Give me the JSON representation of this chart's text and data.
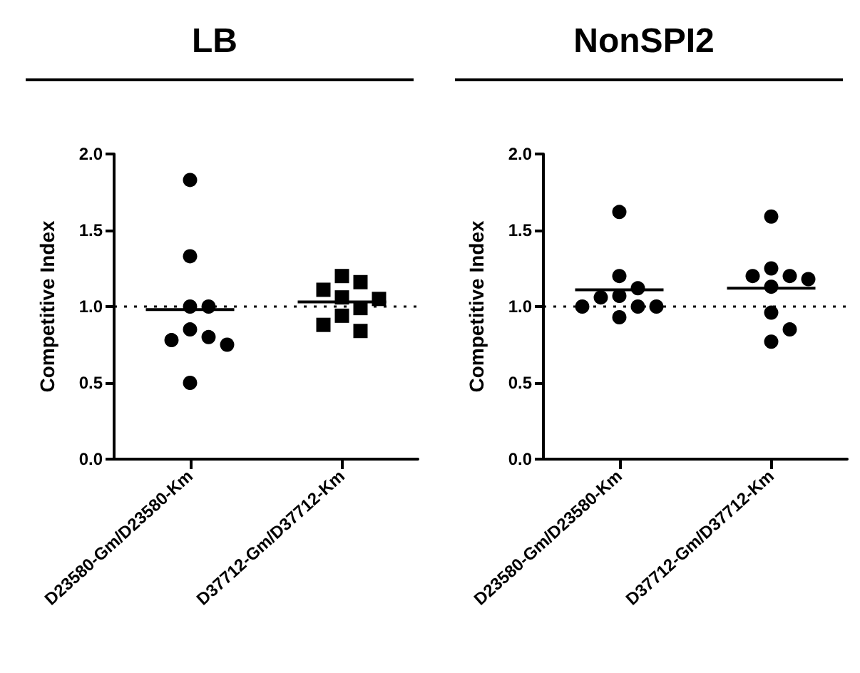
{
  "chart_data": [
    {
      "type": "scatter",
      "title": "LB",
      "ylabel": "Competitive Index",
      "categories": [
        "D23580-Gm/D23580-Km",
        "D37712-Gm/D37712-Km"
      ],
      "ylim": [
        0,
        2
      ],
      "yticks": [
        {
          "value": 0,
          "label": "0.0"
        },
        {
          "value": 0.5,
          "label": "0.5"
        },
        {
          "value": 1,
          "label": "1.0"
        },
        {
          "value": 1.5,
          "label": "1.5"
        },
        {
          "value": 2,
          "label": "2.0"
        }
      ],
      "grid": false,
      "ref_lines": [
        {
          "axis": "y",
          "value": 1,
          "line_style": "dotted",
          "color": "#000000"
        }
      ],
      "series": [
        {
          "marker": "circle",
          "color": "#000000",
          "x": [
            "D23580-Gm/D23580-Km",
            "D23580-Gm/D23580-Km",
            "D23580-Gm/D23580-Km",
            "D23580-Gm/D23580-Km",
            "D23580-Gm/D23580-Km",
            "D23580-Gm/D23580-Km",
            "D23580-Gm/D23580-Km",
            "D23580-Gm/D23580-Km",
            "D23580-Gm/D23580-Km"
          ],
          "values": [
            1.83,
            1.33,
            1.0,
            1.0,
            0.85,
            0.8,
            0.78,
            0.75,
            0.5
          ]
        },
        {
          "marker": "square",
          "color": "#000000",
          "x": [
            "D37712-Gm/D37712-Km",
            "D37712-Gm/D37712-Km",
            "D37712-Gm/D37712-Km",
            "D37712-Gm/D37712-Km",
            "D37712-Gm/D37712-Km",
            "D37712-Gm/D37712-Km",
            "D37712-Gm/D37712-Km",
            "D37712-Gm/D37712-Km",
            "D37712-Gm/D37712-Km"
          ],
          "values": [
            1.2,
            1.16,
            1.11,
            1.06,
            1.05,
            0.99,
            0.94,
            0.88,
            0.84
          ]
        },
        {
          "type": "box",
          "color": "#000000",
          "boxes": [
            {
              "low": 0.98,
              "q1": 0.98,
              "median": 0.98,
              "q3": 0.98,
              "high": 0.98
            },
            {
              "low": 1.03,
              "q1": 1.03,
              "median": 1.03,
              "q3": 1.03,
              "high": 1.03
            }
          ]
        }
      ]
    },
    {
      "type": "scatter",
      "title": "NonSPI2",
      "ylabel": "Competitive Index",
      "categories": [
        "D23580-Gm/D23580-Km",
        "D37712-Gm/D37712-Km"
      ],
      "ylim": [
        0,
        2
      ],
      "yticks": [
        {
          "value": 0,
          "label": "0.0"
        },
        {
          "value": 0.5,
          "label": "0.5"
        },
        {
          "value": 1,
          "label": "1.0"
        },
        {
          "value": 1.5,
          "label": "1.5"
        },
        {
          "value": 2,
          "label": "2.0"
        }
      ],
      "grid": false,
      "ref_lines": [
        {
          "axis": "y",
          "value": 1,
          "line_style": "dotted",
          "color": "#000000"
        }
      ],
      "series": [
        {
          "marker": "circle",
          "color": "#000000",
          "x": [
            "D23580-Gm/D23580-Km",
            "D23580-Gm/D23580-Km",
            "D23580-Gm/D23580-Km",
            "D23580-Gm/D23580-Km",
            "D23580-Gm/D23580-Km",
            "D23580-Gm/D23580-Km",
            "D23580-Gm/D23580-Km",
            "D23580-Gm/D23580-Km",
            "D23580-Gm/D23580-Km"
          ],
          "values": [
            1.62,
            1.2,
            1.12,
            1.07,
            1.06,
            1.0,
            1.0,
            1.0,
            0.93
          ]
        },
        {
          "marker": "circle",
          "color": "#000000",
          "x": [
            "D37712-Gm/D37712-Km",
            "D37712-Gm/D37712-Km",
            "D37712-Gm/D37712-Km",
            "D37712-Gm/D37712-Km",
            "D37712-Gm/D37712-Km",
            "D37712-Gm/D37712-Km",
            "D37712-Gm/D37712-Km",
            "D37712-Gm/D37712-Km",
            "D37712-Gm/D37712-Km"
          ],
          "values": [
            1.59,
            1.25,
            1.2,
            1.2,
            1.18,
            1.13,
            0.96,
            0.85,
            0.77
          ]
        },
        {
          "type": "box",
          "color": "#000000",
          "boxes": [
            {
              "low": 1.11,
              "q1": 1.11,
              "median": 1.11,
              "q3": 1.11,
              "high": 1.11
            },
            {
              "low": 1.12,
              "q1": 1.12,
              "median": 1.12,
              "q3": 1.12,
              "high": 1.12
            }
          ]
        }
      ]
    }
  ]
}
